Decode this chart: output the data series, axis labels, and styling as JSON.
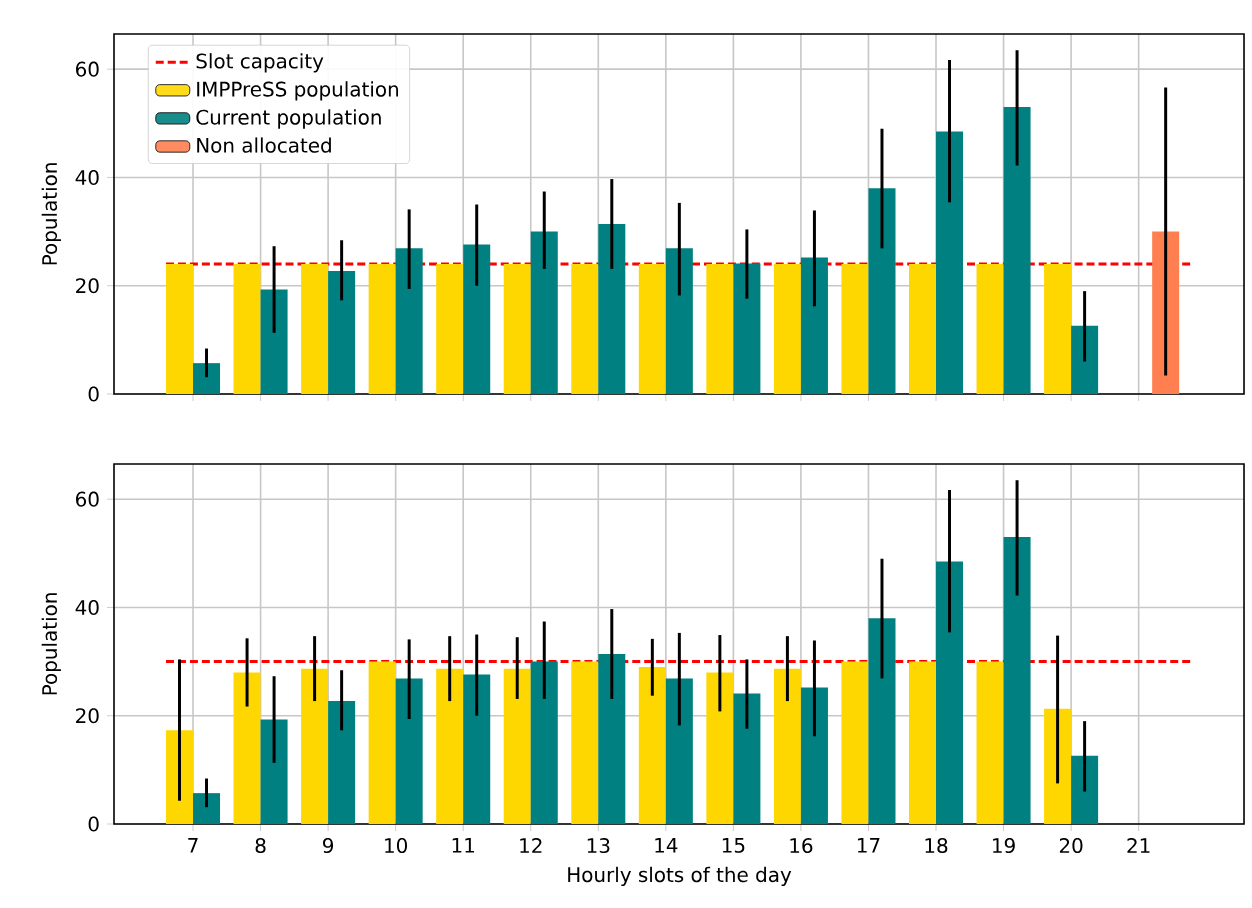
{
  "chart_data": [
    {
      "type": "bar",
      "ylabel": "Population",
      "categories": [
        "7",
        "8",
        "9",
        "10",
        "11",
        "12",
        "13",
        "14",
        "15",
        "16",
        "17",
        "18",
        "19",
        "20",
        "21"
      ],
      "ylim": [
        0,
        66.5
      ],
      "yticks": [
        0,
        20,
        40,
        60
      ],
      "grid": true,
      "legend": "top left",
      "tick_labels": "y",
      "ref_lines": [
        {
          "axis": "y",
          "value": 24,
          "label": "Slot capacity",
          "color": "#ff0000",
          "line_style": "dashed"
        }
      ],
      "series": [
        {
          "name": "IMPPreSS population",
          "color": "#ffd700",
          "values": [
            24,
            24,
            24,
            24,
            24,
            24,
            24,
            24,
            24,
            24,
            24,
            24,
            24,
            24,
            null
          ]
        },
        {
          "name": "Current population",
          "color": "#008080",
          "values": [
            5.7,
            19.3,
            22.7,
            26.9,
            27.6,
            30,
            31.4,
            26.9,
            24.1,
            25.2,
            38,
            48.5,
            53,
            12.6,
            null
          ],
          "errors": [
            [
              3.1,
              8.4
            ],
            [
              11.3,
              27.3
            ],
            [
              17.3,
              28.4
            ],
            [
              19.4,
              34.1
            ],
            [
              20,
              35
            ],
            [
              23.1,
              37.4
            ],
            [
              23.1,
              39.7
            ],
            [
              18.2,
              35.3
            ],
            [
              17.6,
              30.4
            ],
            [
              16.2,
              33.9
            ],
            [
              26.9,
              49
            ],
            [
              35.4,
              61.7
            ],
            [
              42.2,
              63.5
            ],
            [
              6,
              19
            ],
            null
          ]
        },
        {
          "name": "Non allocated",
          "color": "#ff7f50",
          "values": [
            null,
            null,
            null,
            null,
            null,
            null,
            null,
            null,
            null,
            null,
            null,
            null,
            null,
            null,
            30
          ],
          "errors": [
            null,
            null,
            null,
            null,
            null,
            null,
            null,
            null,
            null,
            null,
            null,
            null,
            null,
            null,
            [
              3.4,
              56.6
            ]
          ]
        }
      ]
    },
    {
      "type": "bar",
      "xlabel": "Hourly slots of the day",
      "ylabel": "Population",
      "categories": [
        "7",
        "8",
        "9",
        "10",
        "11",
        "12",
        "13",
        "14",
        "15",
        "16",
        "17",
        "18",
        "19",
        "20",
        "21"
      ],
      "ylim": [
        0,
        66.5
      ],
      "yticks": [
        0,
        20,
        40,
        60
      ],
      "grid": true,
      "ref_lines": [
        {
          "axis": "y",
          "value": 30,
          "color": "#ff0000",
          "line_style": "dashed"
        }
      ],
      "series": [
        {
          "color": "#ffd700",
          "values": [
            17.3,
            28,
            28.7,
            30,
            28.7,
            28.7,
            30,
            29,
            28,
            28.7,
            30,
            30,
            30,
            21.3,
            null
          ],
          "errors": [
            [
              4.3,
              30.4
            ],
            [
              21.7,
              34.3
            ],
            [
              22.7,
              34.7
            ],
            null,
            [
              22.7,
              34.7
            ],
            [
              23.1,
              34.5
            ],
            null,
            [
              23.7,
              34.2
            ],
            [
              20.8,
              34.9
            ],
            [
              22.7,
              34.7
            ],
            null,
            null,
            null,
            [
              7.5,
              34.8
            ],
            null
          ]
        },
        {
          "color": "#008080",
          "values": [
            5.7,
            19.3,
            22.7,
            26.9,
            27.6,
            30,
            31.4,
            26.9,
            24.1,
            25.2,
            38,
            48.5,
            53,
            12.6,
            null
          ],
          "errors": [
            [
              3.1,
              8.4
            ],
            [
              11.3,
              27.3
            ],
            [
              17.3,
              28.4
            ],
            [
              19.4,
              34.1
            ],
            [
              20,
              35
            ],
            [
              23.1,
              37.4
            ],
            [
              23.1,
              39.7
            ],
            [
              18.2,
              35.3
            ],
            [
              17.6,
              30.4
            ],
            [
              16.2,
              33.9
            ],
            [
              26.9,
              49
            ],
            [
              35.4,
              61.7
            ],
            [
              42.2,
              63.5
            ],
            [
              6,
              19
            ],
            null
          ]
        }
      ]
    }
  ]
}
